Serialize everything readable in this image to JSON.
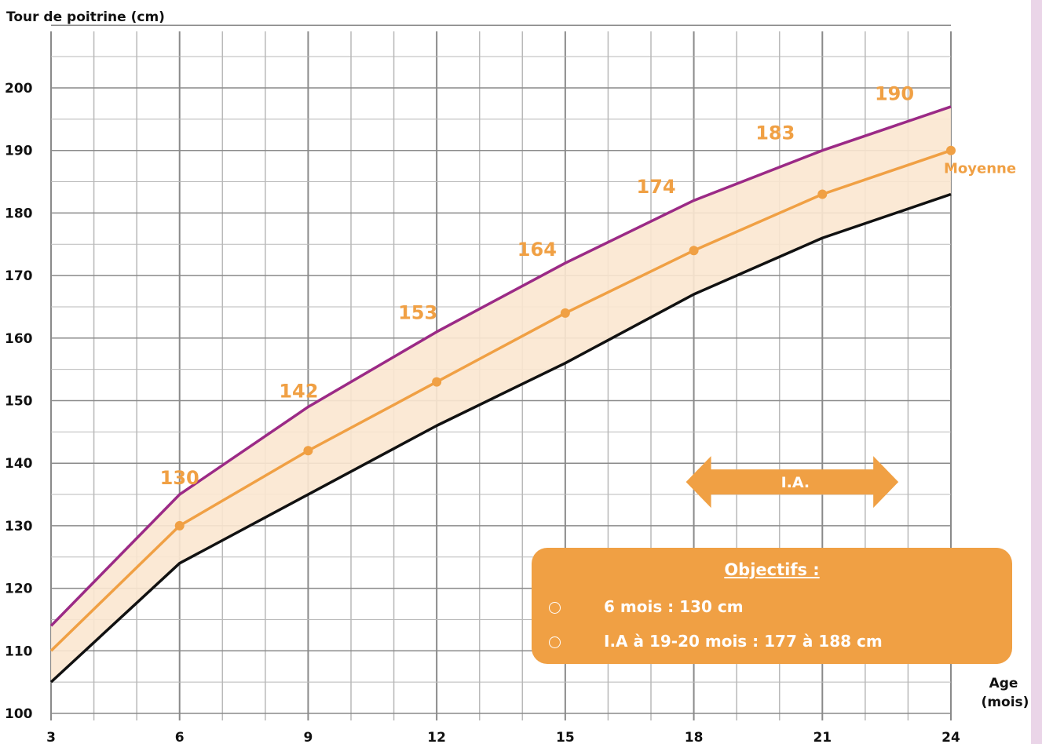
{
  "colors": {
    "upper": "#9b2a86",
    "mean": "#f0a044",
    "lower": "#111111",
    "band_fill": "#fbe7d0",
    "box": "#f0a044",
    "side_strip": "#ead5e8",
    "grid_major": "#8a8a8a",
    "grid_minor": "#b9b9b9"
  },
  "chart_data": {
    "type": "line",
    "ylabel": "Tour de poitrine (cm)",
    "xlabel": [
      "Age",
      "(mois)"
    ],
    "xlim": [
      3,
      24
    ],
    "ylim": [
      100,
      200
    ],
    "x_ticks": [
      3,
      6,
      9,
      12,
      15,
      18,
      21,
      24
    ],
    "x_tick_labels": [
      "3",
      "6",
      "9",
      "12",
      "15",
      "18",
      "21",
      "24"
    ],
    "y_ticks": [
      100,
      110,
      120,
      130,
      140,
      150,
      160,
      170,
      180,
      190,
      200
    ],
    "y_tick_labels": [
      "100",
      "110",
      "120",
      "130",
      "140",
      "150",
      "160",
      "170",
      "180",
      "190",
      "200"
    ],
    "grid": true,
    "series": [
      {
        "key": "upper",
        "x": [
          3,
          6,
          9,
          12,
          15,
          18,
          21,
          24
        ],
        "y": [
          114,
          135,
          149,
          161,
          172,
          182,
          190,
          197
        ]
      },
      {
        "key": "mean",
        "name": "Moyenne",
        "x": [
          3,
          6,
          9,
          12,
          15,
          18,
          21,
          24
        ],
        "y": [
          110,
          130,
          142,
          153,
          164,
          174,
          183,
          190
        ],
        "markers_from_x": 6
      },
      {
        "key": "lower",
        "x": [
          3,
          6,
          9,
          12,
          15,
          18,
          21,
          24
        ],
        "y": [
          105,
          124,
          135,
          146,
          156,
          167,
          176,
          183
        ]
      }
    ],
    "data_labels": [
      {
        "text": "130",
        "x": 6,
        "y": 130
      },
      {
        "text": "142",
        "x": 9,
        "y": 142
      },
      {
        "text": "153",
        "x": 12,
        "y": 153
      },
      {
        "text": "164",
        "x": 15,
        "y": 164
      },
      {
        "text": "174",
        "x": 18,
        "y": 174
      },
      {
        "text": "183",
        "x": 21,
        "y": 183
      },
      {
        "text": "190",
        "x": 24,
        "y": 190
      }
    ],
    "annotations": {
      "ia_arrow": {
        "label": "I.A.",
        "x_from": 18,
        "x_to": 22.5,
        "y": 137
      }
    }
  },
  "objectives": {
    "title": "Objectifs :",
    "items": [
      "6 mois : 130 cm",
      "I.A à 19-20 mois : 177 à 188 cm"
    ]
  }
}
